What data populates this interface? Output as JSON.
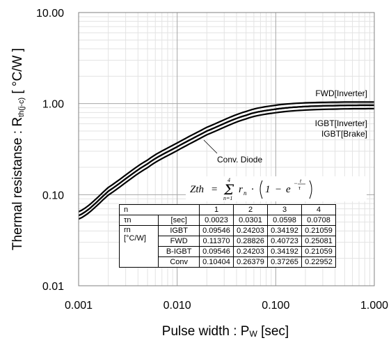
{
  "chart_data": {
    "type": "line",
    "xscale": "log",
    "yscale": "log",
    "xlim": [
      0.001,
      1.0
    ],
    "ylim": [
      0.01,
      10.0
    ],
    "grid": true,
    "xlabel": "Pulse width : Pw [sec]",
    "ylabel": "Thermal resistanse : Rth(j-c) [ °C/W ]",
    "x_ticks": [
      "0.001",
      "0.010",
      "0.100",
      "1.000"
    ],
    "y_ticks": [
      "0.01",
      "0.10",
      "1.00",
      "10.00"
    ],
    "x": [
      0.001,
      0.002,
      0.005,
      0.01,
      0.02,
      0.05,
      0.1,
      0.2,
      0.5,
      1.0
    ],
    "series": [
      {
        "name": "FWD[Inverter]",
        "values": [
          0.065,
          0.12,
          0.24,
          0.37,
          0.55,
          0.82,
          0.96,
          1.02,
          1.04,
          1.04
        ]
      },
      {
        "name": "IGBT[Inverter]",
        "values": [
          0.059,
          0.109,
          0.218,
          0.336,
          0.5,
          0.745,
          0.87,
          0.93,
          0.955,
          0.96
        ]
      },
      {
        "name": "IGBT[Brake]",
        "values": [
          0.059,
          0.109,
          0.218,
          0.336,
          0.5,
          0.745,
          0.87,
          0.93,
          0.955,
          0.96
        ]
      },
      {
        "name": "Conv. Diode",
        "values": [
          0.054,
          0.099,
          0.198,
          0.305,
          0.455,
          0.68,
          0.795,
          0.85,
          0.875,
          0.88
        ]
      }
    ],
    "annotations": [
      "FWD[Inverter]",
      "IGBT[Inverter]",
      "IGBT[Brake]",
      "Conv. Diode"
    ],
    "formula": {
      "lhs": "Zth",
      "sum_top": "4",
      "sum_bottom": "n=1",
      "body_r": "r",
      "body_sub": "n",
      "one": "1",
      "exp_base": "e",
      "exp_num": "t",
      "exp_den": "τ"
    },
    "table": {
      "header_n": "n",
      "header_cols": [
        "1",
        "2",
        "3",
        "4"
      ],
      "tau_label": "τn",
      "tau_unit": "[sec]",
      "tau_values": [
        "0.0023",
        "0.0301",
        "0.0598",
        "0.0708"
      ],
      "r_label": "rn",
      "r_unit": "[°C/W]",
      "rows": [
        {
          "label": "IGBT",
          "values": [
            "0.09546",
            "0.24203",
            "0.34192",
            "0.21059"
          ]
        },
        {
          "label": "FWD",
          "values": [
            "0.11370",
            "0.28826",
            "0.40723",
            "0.25081"
          ]
        },
        {
          "label": "B-IGBT",
          "values": [
            "0.09546",
            "0.24203",
            "0.34192",
            "0.21059"
          ]
        },
        {
          "label": "Conv",
          "values": [
            "0.10404",
            "0.26379",
            "0.37265",
            "0.22952"
          ]
        }
      ]
    }
  }
}
